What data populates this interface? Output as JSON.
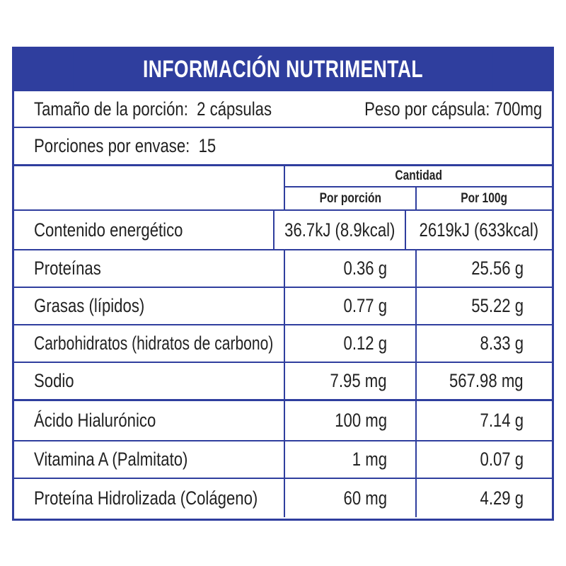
{
  "title": "INFORMACIÓN NUTRIMENTAL",
  "serving": {
    "size_label": "Tamaño de la porción:",
    "size_value": "2 cápsulas",
    "weight_label": "Peso por cápsula:",
    "weight_value": "700mg"
  },
  "servings_per_container": {
    "label": "Porciones por envase:",
    "value": "15"
  },
  "columns": {
    "group": "Cantidad",
    "per_serving": "Por porción",
    "per_100g": "Por 100g"
  },
  "rows": [
    {
      "name": "Contenido energético",
      "per_serving": "36.7kJ (8.9kcal)",
      "per_100g": "2619kJ (633kcal)"
    },
    {
      "name": "Proteínas",
      "per_serving": "0.36 g",
      "per_100g": "25.56 g"
    },
    {
      "name": "Grasas (lípidos)",
      "per_serving": "0.77 g",
      "per_100g": "55.22 g"
    },
    {
      "name": "Carbohidratos (hidratos de carbono)",
      "per_serving": "0.12 g",
      "per_100g": "8.33 g"
    },
    {
      "name": "Sodio",
      "per_serving": "7.95 mg",
      "per_100g": "567.98 mg"
    },
    {
      "name": "Ácido Hialurónico",
      "per_serving": "100 mg",
      "per_100g": "7.14 g"
    },
    {
      "name": "Vitamina A (Palmitato)",
      "per_serving": "1 mg",
      "per_100g": "0.07 g"
    },
    {
      "name": "Proteína Hidrolizada (Colágeno)",
      "per_serving": "60 mg",
      "per_100g": "4.29 g"
    }
  ],
  "colors": {
    "brand_blue": "#2f3e9e",
    "text": "#222222"
  }
}
